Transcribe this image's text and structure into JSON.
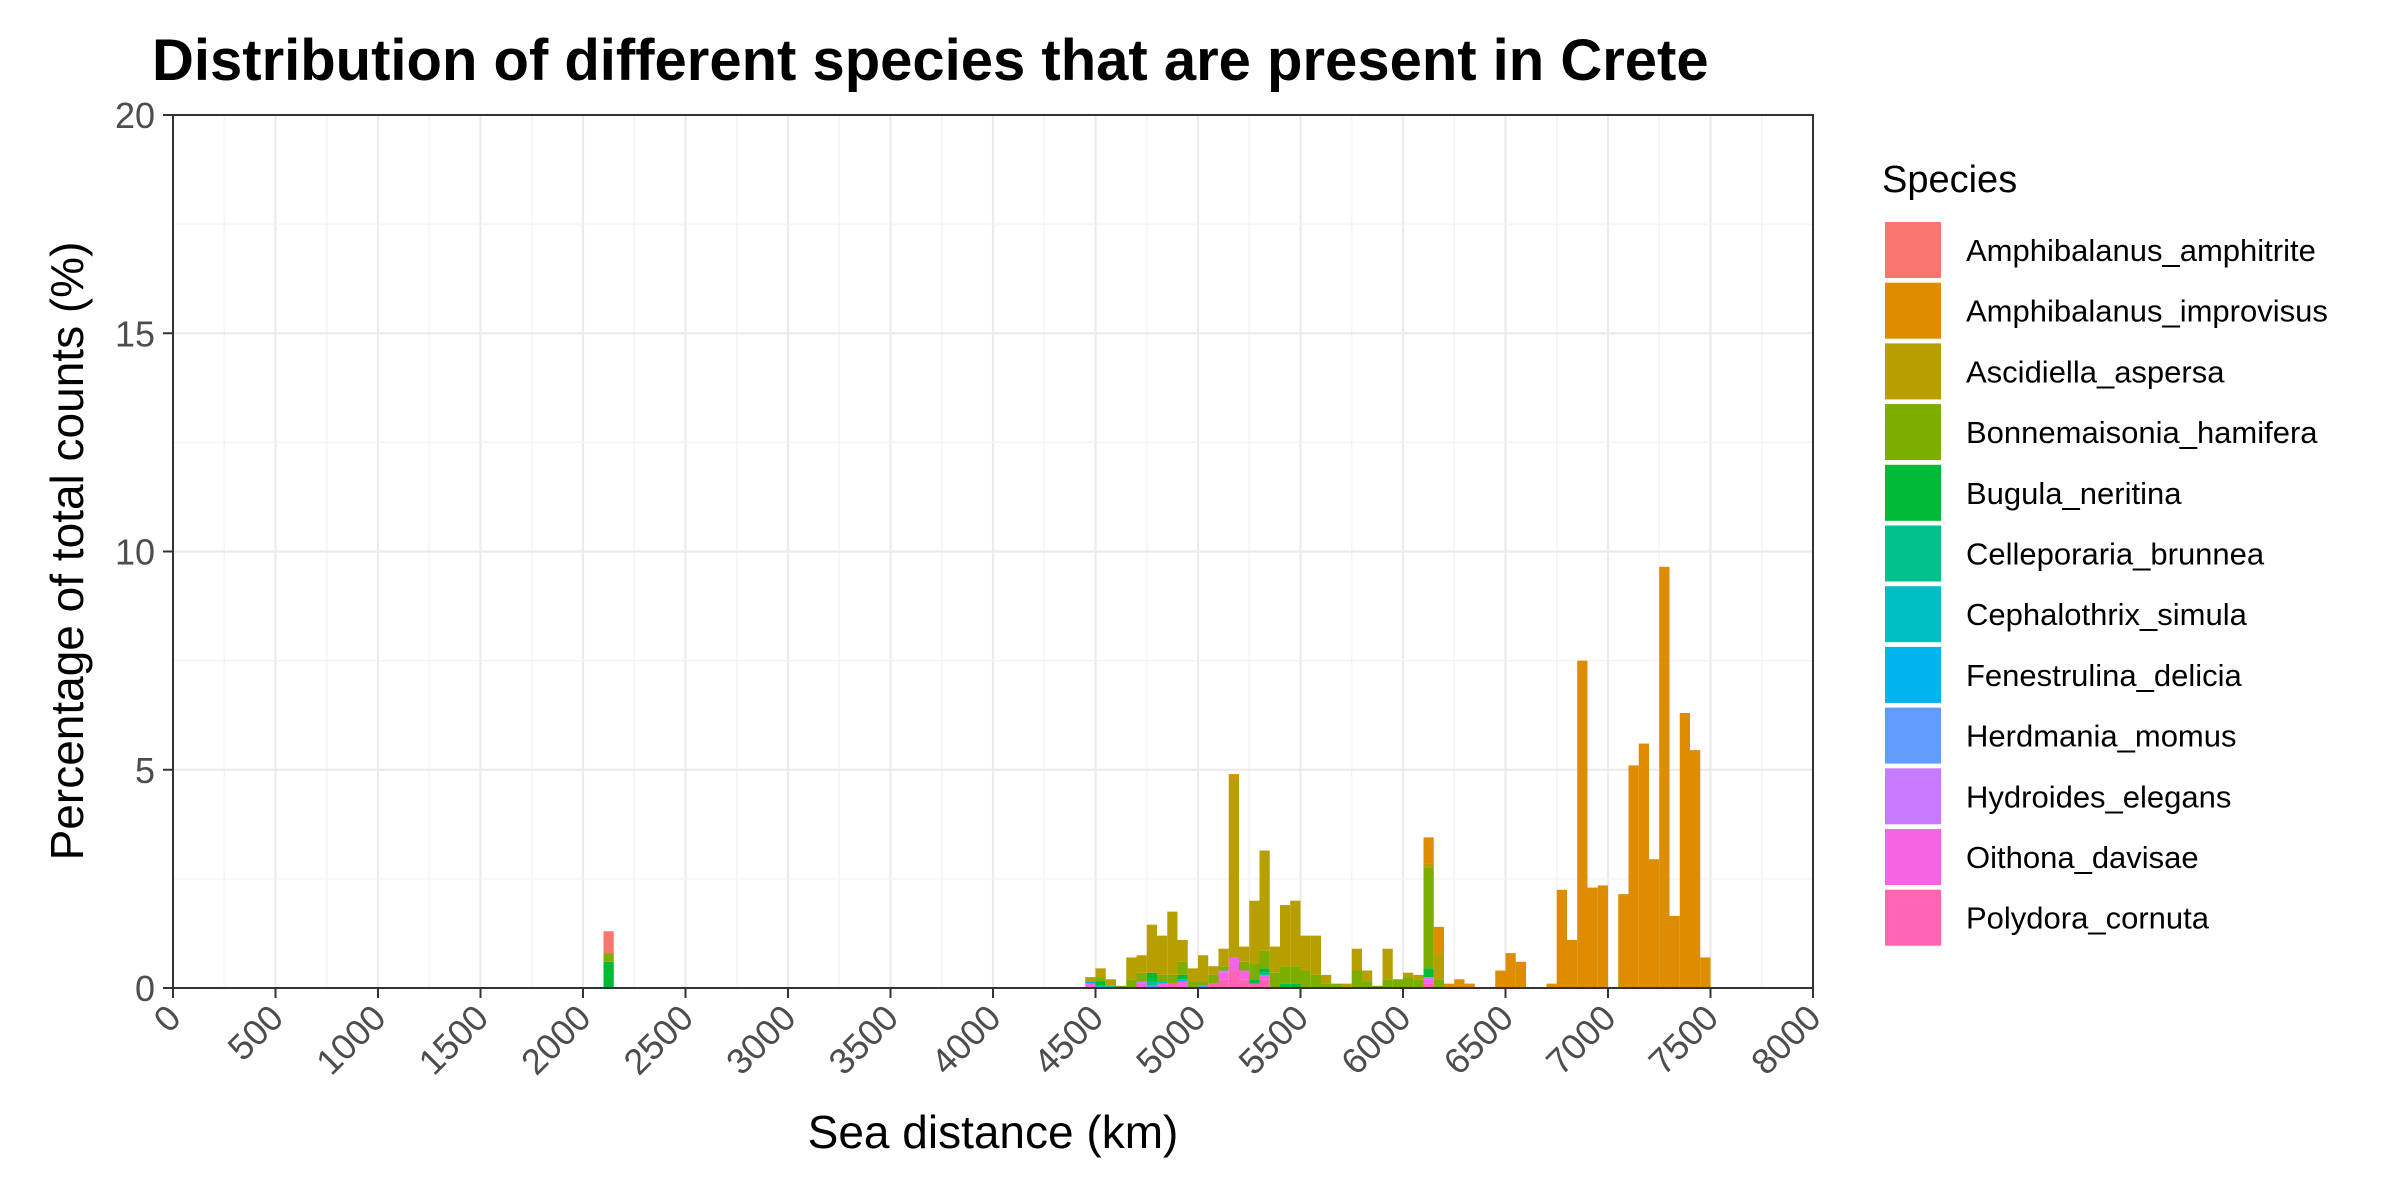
{
  "chart_data": {
    "type": "bar",
    "stacked": true,
    "title": "Distribution of different species that are present in Crete",
    "xlabel": "Sea distance (km)",
    "ylabel": "Percentage of total counts (%)",
    "xlim": [
      0,
      8000
    ],
    "ylim": [
      0,
      20
    ],
    "x_ticks": [
      0,
      500,
      1000,
      1500,
      2000,
      2500,
      3000,
      3500,
      4000,
      4500,
      5000,
      5500,
      6000,
      6500,
      7000,
      7500,
      8000
    ],
    "y_ticks": [
      0,
      5,
      10,
      15,
      20
    ],
    "grid": true,
    "legend_position": "right",
    "legend_title": "Species",
    "bin_width": 50,
    "series": [
      {
        "name": "Amphibalanus_amphitrite",
        "color": "#F8766D",
        "points": [
          [
            2125,
            0.5
          ]
        ]
      },
      {
        "name": "Amphibalanus_improvisus",
        "color": "#DE8C00",
        "points": [
          [
            5175,
            0.1
          ],
          [
            6125,
            0.6
          ],
          [
            6175,
            0.6
          ],
          [
            6225,
            0.1
          ],
          [
            6275,
            0.2
          ],
          [
            6325,
            0.1
          ],
          [
            6475,
            0.4
          ],
          [
            6525,
            0.8
          ],
          [
            6575,
            0.6
          ],
          [
            6725,
            0.1
          ],
          [
            6775,
            2.25
          ],
          [
            6825,
            1.1
          ],
          [
            6875,
            7.5
          ],
          [
            6925,
            2.3
          ],
          [
            6975,
            2.35
          ],
          [
            7075,
            2.15
          ],
          [
            7125,
            5.1
          ],
          [
            7175,
            5.6
          ],
          [
            7225,
            2.95
          ],
          [
            7275,
            9.65
          ],
          [
            7325,
            1.65
          ],
          [
            7375,
            6.3
          ],
          [
            7425,
            5.45
          ],
          [
            7475,
            0.7
          ]
        ]
      },
      {
        "name": "Ascidiella_aspersa",
        "color": "#B79F00",
        "points": [
          [
            4475,
            0.1
          ],
          [
            4525,
            0.2
          ],
          [
            4575,
            0.15
          ],
          [
            4675,
            0.5
          ],
          [
            4725,
            0.4
          ],
          [
            4775,
            1.1
          ],
          [
            4825,
            0.9
          ],
          [
            4875,
            1.45
          ],
          [
            4925,
            0.5
          ],
          [
            4975,
            0.3
          ],
          [
            5025,
            0.6
          ],
          [
            5075,
            0.2
          ],
          [
            5125,
            0.4
          ],
          [
            5175,
            4.1
          ],
          [
            5225,
            0.35
          ],
          [
            5275,
            1.45
          ],
          [
            5325,
            2.3
          ],
          [
            5375,
            0.6
          ],
          [
            5425,
            1.4
          ],
          [
            5475,
            1.5
          ],
          [
            5525,
            0.8
          ],
          [
            5575,
            0.9
          ],
          [
            5625,
            0.2
          ],
          [
            5725,
            0.1
          ],
          [
            5775,
            0.5
          ],
          [
            5825,
            0.25
          ],
          [
            5925,
            0.7
          ],
          [
            6025,
            0.1
          ],
          [
            6075,
            0.1
          ],
          [
            6125,
            0.1
          ],
          [
            6175,
            0.6
          ]
        ]
      },
      {
        "name": "Bonnemaisonia_hamifera",
        "color": "#7CAE00",
        "points": [
          [
            2125,
            0.2
          ],
          [
            4525,
            0.1
          ],
          [
            4625,
            0.05
          ],
          [
            4675,
            0.2
          ],
          [
            4725,
            0.2
          ],
          [
            4825,
            0.15
          ],
          [
            4875,
            0.2
          ],
          [
            4925,
            0.3
          ],
          [
            4975,
            0.15
          ],
          [
            5025,
            0.1
          ],
          [
            5075,
            0.2
          ],
          [
            5125,
            0.1
          ],
          [
            5225,
            0.2
          ],
          [
            5275,
            0.35
          ],
          [
            5325,
            0.4
          ],
          [
            5375,
            0.35
          ],
          [
            5425,
            0.4
          ],
          [
            5475,
            0.4
          ],
          [
            5525,
            0.4
          ],
          [
            5575,
            0.3
          ],
          [
            5625,
            0.1
          ],
          [
            5675,
            0.1
          ],
          [
            5775,
            0.4
          ],
          [
            5825,
            0.15
          ],
          [
            5875,
            0.05
          ],
          [
            5925,
            0.2
          ],
          [
            5975,
            0.2
          ],
          [
            6025,
            0.25
          ],
          [
            6075,
            0.2
          ],
          [
            6125,
            2.3
          ],
          [
            6175,
            0.2
          ]
        ]
      },
      {
        "name": "Bugula_neritina",
        "color": "#00BA38",
        "points": [
          [
            2125,
            0.6
          ],
          [
            4525,
            0.1
          ],
          [
            4775,
            0.2
          ],
          [
            4925,
            0.1
          ],
          [
            5275,
            0.1
          ],
          [
            5325,
            0.1
          ],
          [
            5425,
            0.1
          ],
          [
            5475,
            0.1
          ],
          [
            6125,
            0.2
          ]
        ]
      },
      {
        "name": "Celleporaria_brunnea",
        "color": "#00C08B",
        "points": [
          [
            4575,
            0.05
          ],
          [
            4775,
            0.1
          ],
          [
            5325,
            0.05
          ]
        ]
      },
      {
        "name": "Cephalothrix_simula",
        "color": "#00BFC4",
        "points": [
          [
            4525,
            0.05
          ],
          [
            4825,
            0.05
          ]
        ]
      },
      {
        "name": "Fenestrulina_delicia",
        "color": "#00B4F0",
        "points": [
          [
            4475,
            0.05
          ],
          [
            4925,
            0.05
          ]
        ]
      },
      {
        "name": "Herdmania_momus",
        "color": "#619CFF",
        "points": [
          [
            4775,
            0.05
          ],
          [
            5025,
            0.05
          ]
        ]
      },
      {
        "name": "Hydroides_elegans",
        "color": "#C77CFF",
        "points": [
          [
            4725,
            0.05
          ],
          [
            5125,
            0.05
          ],
          [
            6125,
            0.05
          ]
        ]
      },
      {
        "name": "Oithona_davisae",
        "color": "#F564E3",
        "points": [
          [
            4475,
            0.1
          ],
          [
            4725,
            0.1
          ],
          [
            4825,
            0.1
          ],
          [
            4925,
            0.15
          ],
          [
            5125,
            0.15
          ],
          [
            5175,
            0.3
          ],
          [
            5225,
            0.2
          ],
          [
            5325,
            0.1
          ],
          [
            6125,
            0.1
          ]
        ]
      },
      {
        "name": "Polydora_cornuta",
        "color": "#FF64B0",
        "points": [
          [
            4875,
            0.1
          ],
          [
            5075,
            0.1
          ],
          [
            5125,
            0.2
          ],
          [
            5175,
            0.4
          ],
          [
            5225,
            0.2
          ],
          [
            5275,
            0.1
          ],
          [
            5325,
            0.2
          ],
          [
            6125,
            0.1
          ]
        ]
      }
    ]
  }
}
